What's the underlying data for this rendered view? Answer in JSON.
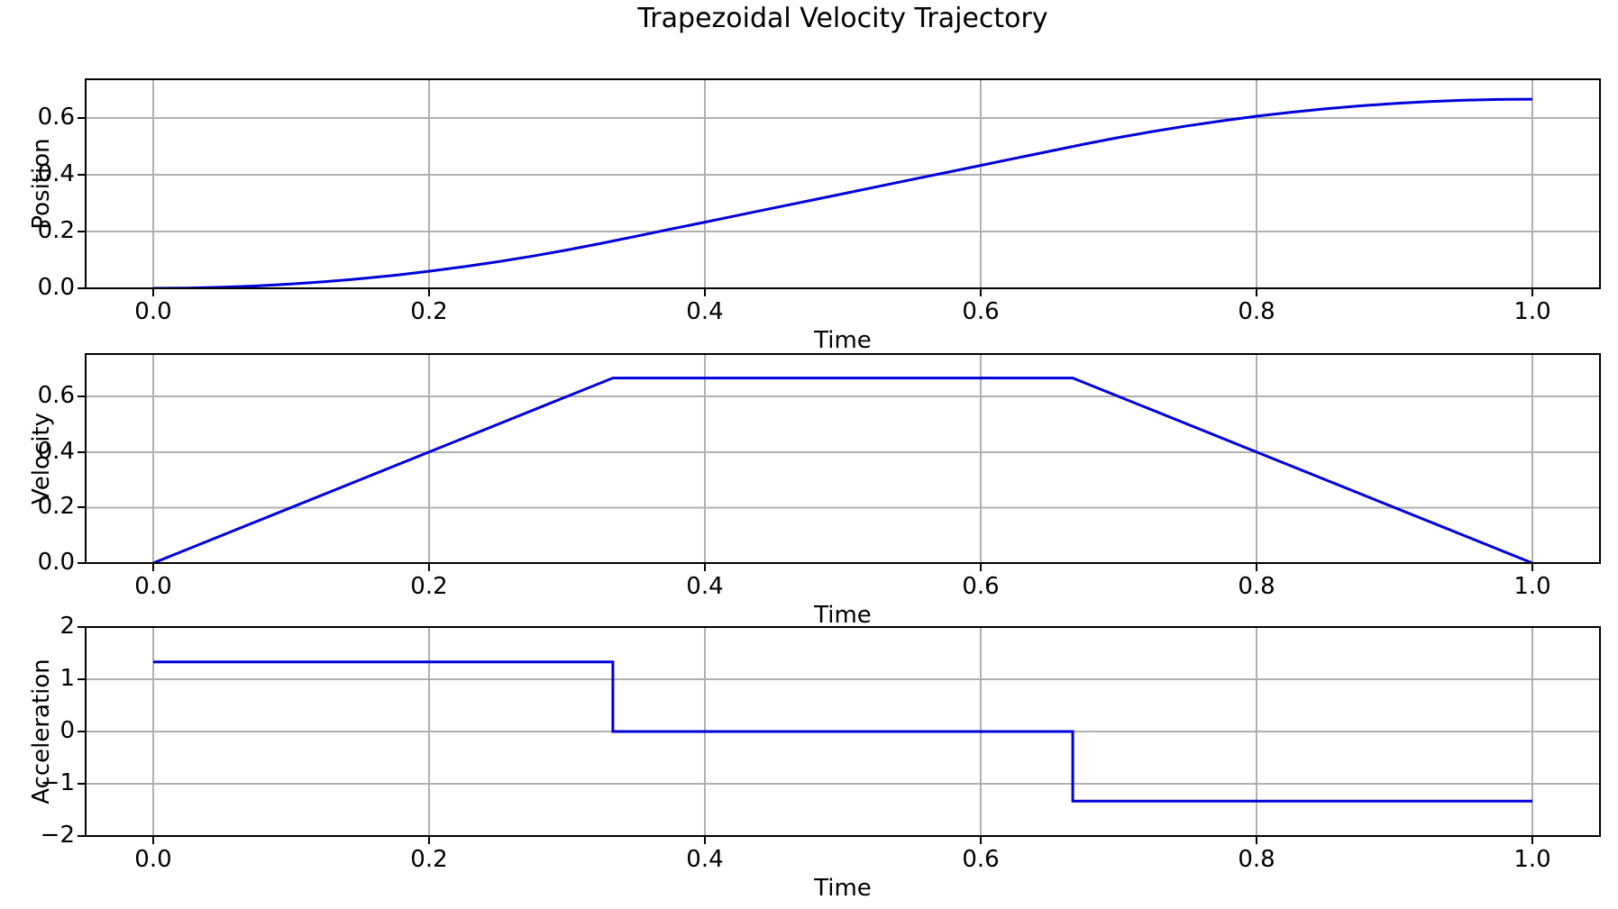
{
  "figure": {
    "title": "Trapezoidal Velocity Trajectory",
    "background_color": "#ffffff",
    "line_color": "#0000dd",
    "grid_color": "#b0b0b0",
    "spine_color": "#000000",
    "text_color": "#000000"
  },
  "chart_data": [
    {
      "type": "line",
      "name": "position-vs-time",
      "title": "",
      "xlabel": "Time",
      "ylabel": "Position",
      "legend": "none",
      "grid": true,
      "xlim": [
        -0.049,
        1.049
      ],
      "ylim": [
        0,
        0.737
      ],
      "xticks": [
        0.0,
        0.2,
        0.4,
        0.6,
        0.8,
        1.0
      ],
      "xtick_labels": [
        "0.0",
        "0.2",
        "0.4",
        "0.6",
        "0.8",
        "1.0"
      ],
      "yticks": [
        0.0,
        0.2,
        0.4,
        0.6
      ],
      "ytick_labels": [
        "0.0",
        "0.2",
        "0.4",
        "0.6"
      ],
      "x": [
        0,
        0.025,
        0.05,
        0.075,
        0.1,
        0.125,
        0.15,
        0.175,
        0.2,
        0.225,
        0.25,
        0.275,
        0.3,
        0.325,
        0.3333,
        0.35,
        0.375,
        0.4,
        0.425,
        0.45,
        0.475,
        0.5,
        0.525,
        0.55,
        0.575,
        0.6,
        0.625,
        0.65,
        0.6667,
        0.675,
        0.7,
        0.725,
        0.75,
        0.775,
        0.8,
        0.825,
        0.85,
        0.875,
        0.9,
        0.925,
        0.95,
        0.975,
        1.0
      ],
      "y": [
        0,
        0.0009,
        0.0038,
        0.0084,
        0.015,
        0.0234,
        0.0338,
        0.0459,
        0.06,
        0.0759,
        0.0938,
        0.1134,
        0.135,
        0.1584,
        0.1667,
        0.1833,
        0.2083,
        0.2333,
        0.2583,
        0.2833,
        0.3083,
        0.3333,
        0.3583,
        0.3833,
        0.4083,
        0.4333,
        0.4583,
        0.4833,
        0.5,
        0.5082,
        0.5317,
        0.5532,
        0.5729,
        0.5907,
        0.6067,
        0.6207,
        0.6329,
        0.6432,
        0.6517,
        0.6582,
        0.6629,
        0.6657,
        0.6667
      ]
    },
    {
      "type": "line",
      "name": "velocity-vs-time",
      "title": "",
      "xlabel": "Time",
      "ylabel": "Velocity",
      "legend": "none",
      "grid": true,
      "xlim": [
        -0.049,
        1.049
      ],
      "ylim": [
        0,
        0.753
      ],
      "xticks": [
        0.0,
        0.2,
        0.4,
        0.6,
        0.8,
        1.0
      ],
      "xtick_labels": [
        "0.0",
        "0.2",
        "0.4",
        "0.6",
        "0.8",
        "1.0"
      ],
      "yticks": [
        0.0,
        0.2,
        0.4,
        0.6
      ],
      "ytick_labels": [
        "0.0",
        "0.2",
        "0.4",
        "0.6"
      ],
      "x": [
        0,
        0.3333,
        0.6667,
        1.0
      ],
      "y": [
        0,
        0.6667,
        0.6667,
        0
      ]
    },
    {
      "type": "line",
      "name": "acceleration-vs-time",
      "title": "",
      "xlabel": "Time",
      "ylabel": "Acceleration",
      "legend": "none",
      "grid": true,
      "xlim": [
        -0.049,
        1.049
      ],
      "ylim": [
        -2,
        2
      ],
      "xticks": [
        0.0,
        0.2,
        0.4,
        0.6,
        0.8,
        1.0
      ],
      "xtick_labels": [
        "0.0",
        "0.2",
        "0.4",
        "0.6",
        "0.8",
        "1.0"
      ],
      "yticks": [
        -2,
        -1,
        0,
        1,
        2
      ],
      "ytick_labels": [
        "−2",
        "−1",
        "0",
        "1",
        "2"
      ],
      "x": [
        0,
        0.3333,
        0.3333,
        0.6667,
        0.6667,
        1.0
      ],
      "y": [
        1.3333,
        1.3333,
        0,
        0,
        -1.3333,
        -1.3333
      ]
    }
  ]
}
